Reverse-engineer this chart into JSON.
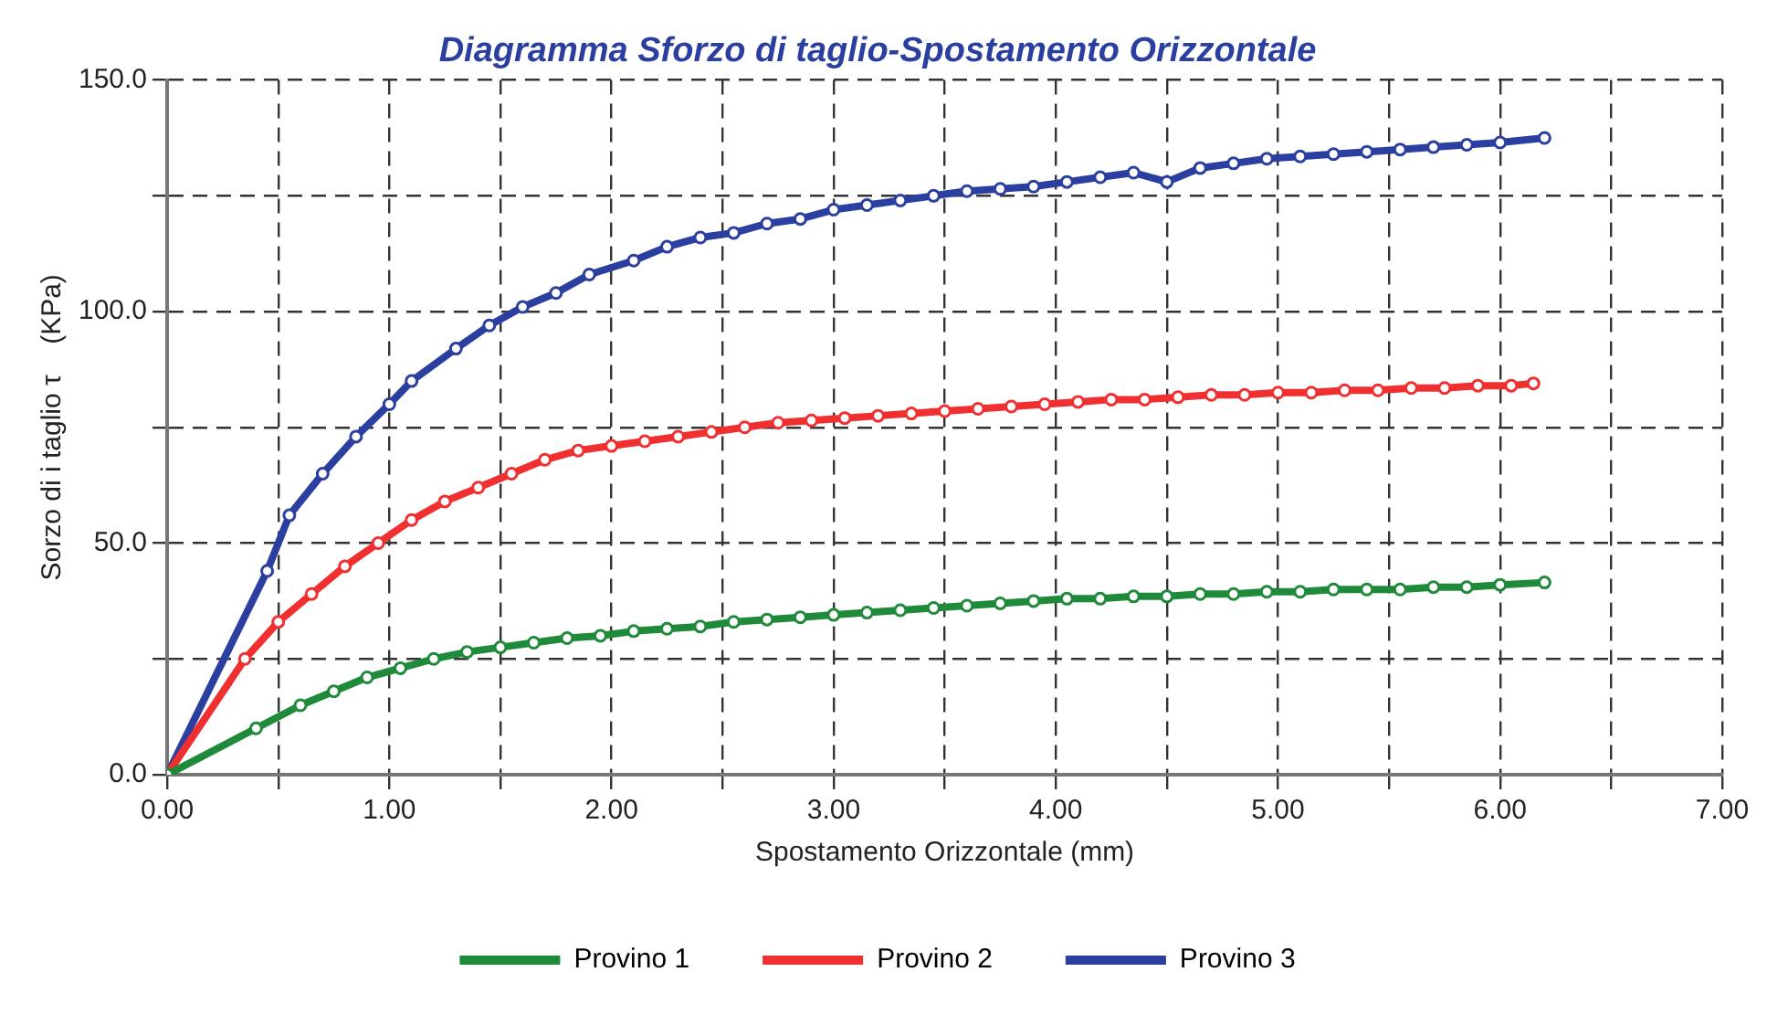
{
  "chart_data": {
    "type": "line",
    "title": "Diagramma Sforzo di taglio-Spostamento Orizzontale",
    "xlabel": "Spostamento Orizzontale (mm)",
    "ylabel": "Sorzo di i taglio τ    (KPa)",
    "xlim": [
      0,
      7
    ],
    "ylim": [
      0,
      150
    ],
    "xticks": [
      {
        "value": 0,
        "label": "0.00"
      },
      {
        "value": 0.5,
        "label": null
      },
      {
        "value": 1,
        "label": "1.00"
      },
      {
        "value": 1.5,
        "label": null
      },
      {
        "value": 2,
        "label": "2.00"
      },
      {
        "value": 2.5,
        "label": null
      },
      {
        "value": 3,
        "label": "3.00"
      },
      {
        "value": 3.5,
        "label": null
      },
      {
        "value": 4,
        "label": "4.00"
      },
      {
        "value": 4.5,
        "label": null
      },
      {
        "value": 5,
        "label": "5.00"
      },
      {
        "value": 5.5,
        "label": null
      },
      {
        "value": 6,
        "label": "6.00"
      },
      {
        "value": 6.5,
        "label": null
      },
      {
        "value": 7,
        "label": "7.00"
      }
    ],
    "yticks": [
      {
        "value": 0,
        "label": "0.0"
      },
      {
        "value": 25,
        "label": null
      },
      {
        "value": 50,
        "label": "50.0"
      },
      {
        "value": 75,
        "label": null
      },
      {
        "value": 100,
        "label": "100.0"
      },
      {
        "value": 125,
        "label": null
      },
      {
        "value": 150,
        "label": "150.0"
      }
    ],
    "grid": true,
    "legend": "bottom",
    "marker": "circle",
    "line_style": "solid",
    "series": [
      {
        "name": "Provino 1",
        "color": "#1e8a3a",
        "x": [
          0,
          0.4,
          0.6,
          0.75,
          0.9,
          1.05,
          1.2,
          1.35,
          1.5,
          1.65,
          1.8,
          1.95,
          2.1,
          2.25,
          2.4,
          2.55,
          2.7,
          2.85,
          3.0,
          3.15,
          3.3,
          3.45,
          3.6,
          3.75,
          3.9,
          4.05,
          4.2,
          4.35,
          4.5,
          4.65,
          4.8,
          4.95,
          5.1,
          5.25,
          5.4,
          5.55,
          5.7,
          5.85,
          6.0,
          6.2
        ],
        "values": [
          0,
          10,
          15,
          18,
          21,
          23,
          25,
          26.5,
          27.5,
          28.5,
          29.5,
          30,
          31,
          31.5,
          32,
          33,
          33.5,
          34,
          34.5,
          35,
          35.5,
          36,
          36.5,
          37,
          37.5,
          38,
          38,
          38.5,
          38.5,
          39,
          39,
          39.5,
          39.5,
          40,
          40,
          40,
          40.5,
          40.5,
          41,
          41.5
        ]
      },
      {
        "name": "Provino 2",
        "color": "#f03030",
        "x": [
          0,
          0.35,
          0.5,
          0.65,
          0.8,
          0.95,
          1.1,
          1.25,
          1.4,
          1.55,
          1.7,
          1.85,
          2.0,
          2.15,
          2.3,
          2.45,
          2.6,
          2.75,
          2.9,
          3.05,
          3.2,
          3.35,
          3.5,
          3.65,
          3.8,
          3.95,
          4.1,
          4.25,
          4.4,
          4.55,
          4.7,
          4.85,
          5.0,
          5.15,
          5.3,
          5.45,
          5.6,
          5.75,
          5.9,
          6.05,
          6.15
        ],
        "values": [
          0,
          25,
          33,
          39,
          45,
          50,
          55,
          59,
          62,
          65,
          68,
          70,
          71,
          72,
          73,
          74,
          75,
          76,
          76.5,
          77,
          77.5,
          78,
          78.5,
          79,
          79.5,
          80,
          80.5,
          81,
          81,
          81.5,
          82,
          82,
          82.5,
          82.5,
          83,
          83,
          83.5,
          83.5,
          84,
          84,
          84.5
        ]
      },
      {
        "name": "Provino 3",
        "color": "#2a3fa0",
        "x": [
          0,
          0.45,
          0.55,
          0.7,
          0.85,
          1.0,
          1.1,
          1.3,
          1.45,
          1.6,
          1.75,
          1.9,
          2.1,
          2.25,
          2.4,
          2.55,
          2.7,
          2.85,
          3.0,
          3.15,
          3.3,
          3.45,
          3.6,
          3.75,
          3.9,
          4.05,
          4.2,
          4.35,
          4.5,
          4.65,
          4.8,
          4.95,
          5.1,
          5.25,
          5.4,
          5.55,
          5.7,
          5.85,
          6.0,
          6.2
        ],
        "values": [
          0,
          44,
          56,
          65,
          73,
          80,
          85,
          92,
          97,
          101,
          104,
          108,
          111,
          114,
          116,
          117,
          119,
          120,
          122,
          123,
          124,
          125,
          126,
          126.5,
          127,
          128,
          129,
          130,
          128,
          131,
          132,
          133,
          133.5,
          134,
          134.5,
          135,
          135.5,
          136,
          136.5,
          137.5
        ]
      }
    ]
  }
}
